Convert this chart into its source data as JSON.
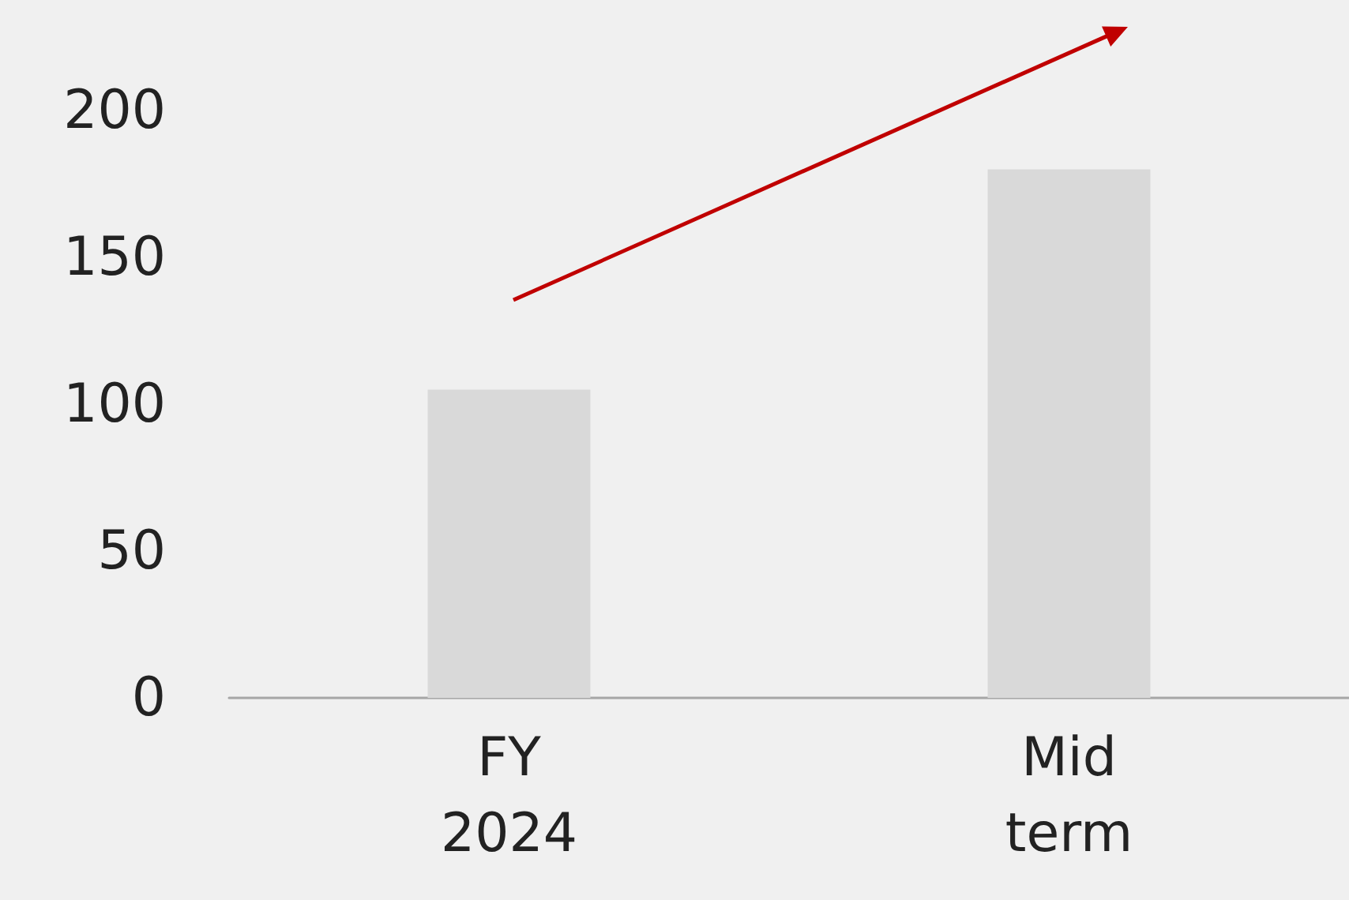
{
  "chart_data": {
    "type": "bar",
    "categories": [
      "FY\n2024",
      "Mid\nterm"
    ],
    "values": [
      105,
      180
    ],
    "color": "#d9d9d9",
    "ylim": [
      0,
      200
    ],
    "yticks": [
      0,
      50,
      100,
      150,
      200
    ],
    "grid": false
  }
}
